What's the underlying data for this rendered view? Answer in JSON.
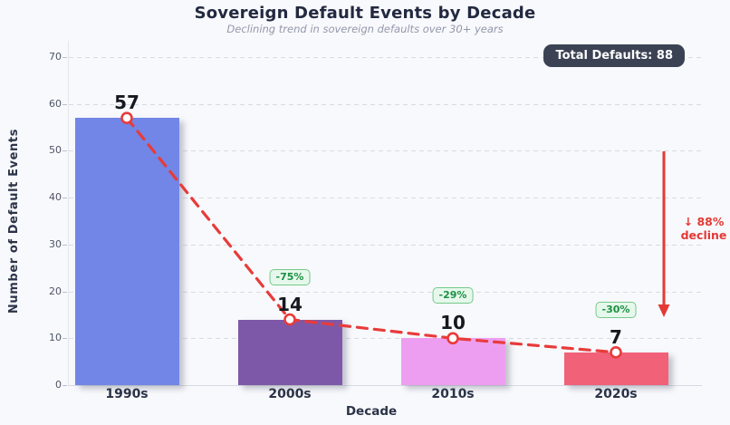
{
  "header": {
    "total_badge": "Total Defaults: 88"
  },
  "chart_data": {
    "type": "bar",
    "title": "Sovereign Default Events by Decade",
    "subtitle": "Declining trend in sovereign defaults over 30+ years",
    "xlabel": "Decade",
    "ylabel": "Number of Default Events",
    "categories": [
      "1990s",
      "2000s",
      "2010s",
      "2020s"
    ],
    "values": [
      57,
      14,
      10,
      7
    ],
    "value_labels": [
      "57",
      "14",
      "10",
      "7"
    ],
    "pct_change_badges": [
      "",
      "-75%",
      "-29%",
      "-30%"
    ],
    "bar_colors": [
      "#7186e6",
      "#7e58a8",
      "#ee9ef0",
      "#f16178"
    ],
    "total": 88,
    "yticks": [
      0,
      10,
      20,
      30,
      40,
      50,
      60,
      70
    ],
    "ylim": [
      0,
      74
    ],
    "grid": "horizontal-dashed",
    "legend": "none",
    "trendline": {
      "style": "dashed",
      "color": "#e83b3b",
      "marker": "open-circle",
      "values": [
        57,
        14,
        10,
        7
      ]
    },
    "annotation": {
      "lines": [
        "↓ 88%",
        "decline"
      ],
      "color": "#e53935"
    },
    "colors": {
      "background": "#f8f9fc",
      "title_text": "#222940",
      "subtitle_text": "#9298ab",
      "axis_text": "#2b3348",
      "tick_text": "#4e5566",
      "total_badge_bg": "#3b4254",
      "total_badge_text": "#ffffff",
      "pct_badge_bg": "#e6f8eb",
      "pct_badge_border": "#74c98b",
      "pct_badge_text": "#1d9044",
      "trend_red": "#e83b3b"
    }
  }
}
